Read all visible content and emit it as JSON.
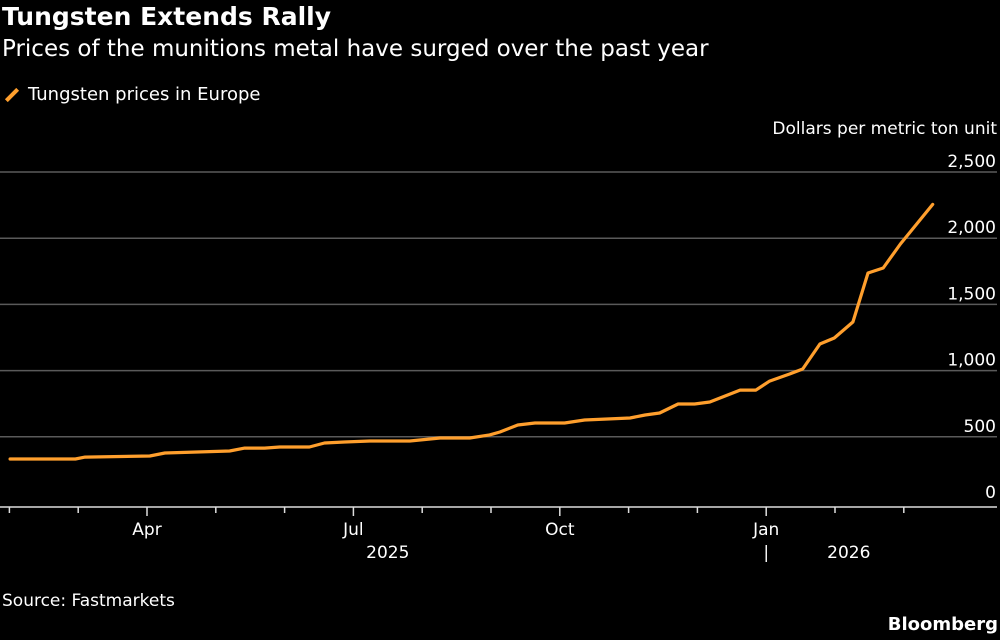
{
  "chart_data": {
    "type": "line",
    "title": "Tungsten Extends Rally",
    "subtitle": "Prices of the munitions metal have surged over the past year",
    "ylabel": "Dollars per metric ton unit",
    "xlabel": "",
    "ylim": [
      0,
      2500
    ],
    "yticks": [
      0,
      500,
      1000,
      1500,
      2000,
      2500
    ],
    "ytick_labels": [
      "0",
      "500",
      "1,000",
      "1,500",
      "2,000",
      "2,500"
    ],
    "x_unit": "months since Jan 1 2025",
    "xlim": [
      1.0,
      15.37
    ],
    "month_ticks": [
      1,
      2,
      3,
      4,
      5,
      6,
      7,
      8,
      9,
      10,
      11,
      12,
      13,
      14
    ],
    "labeled_ticks": [
      {
        "x": 3,
        "label": "Apr"
      },
      {
        "x": 6,
        "label": "Jul"
      },
      {
        "x": 9,
        "label": "Oct"
      },
      {
        "x": 12,
        "label": "Jan"
      }
    ],
    "year_labels": [
      {
        "x": 6.5,
        "label": "2025"
      },
      {
        "x": 13.2,
        "label": "2026"
      }
    ],
    "year_separator": "|",
    "grid": true,
    "legend": "top-left",
    "series": [
      {
        "name": "Tungsten prices in Europe",
        "color": "#ff9f2d",
        "x": [
          1.01,
          1.96,
          2.1,
          3.04,
          3.26,
          4.2,
          4.42,
          4.71,
          4.93,
          5.36,
          5.58,
          5.87,
          6.24,
          6.82,
          7.26,
          7.69,
          7.98,
          8.13,
          8.39,
          8.64,
          9.07,
          9.36,
          10.02,
          10.24,
          10.45,
          10.72,
          10.96,
          11.18,
          11.62,
          11.85,
          12.05,
          12.34,
          12.53,
          12.78,
          12.99,
          13.26,
          13.48,
          13.7,
          13.95,
          14.42
        ],
        "values": [
          332,
          332,
          347,
          355,
          378,
          393,
          415,
          415,
          423,
          423,
          453,
          461,
          468,
          468,
          491,
          491,
          514,
          536,
          589,
          604,
          604,
          627,
          642,
          665,
          680,
          748,
          748,
          763,
          853,
          853,
          921,
          974,
          1012,
          1201,
          1246,
          1367,
          1737,
          1775,
          1956,
          2255
        ]
      }
    ]
  },
  "source": "Source: Fastmarkets",
  "brand": "Bloomberg"
}
